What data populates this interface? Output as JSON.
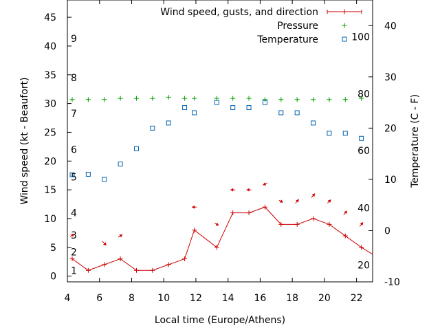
{
  "chart_data": {
    "type": "line",
    "xlabel": "Local time (Europe/Athens)",
    "ylabel_left": "Wind speed (kt - Beaufort)",
    "ylabel_right": "Temperature (C - F)",
    "x_ticks": [
      4,
      6,
      8,
      10,
      12,
      14,
      16,
      18,
      20,
      22
    ],
    "xlim": [
      4,
      23
    ],
    "y_left_ticks": [
      0,
      5,
      10,
      15,
      20,
      25,
      30,
      35,
      40,
      45
    ],
    "y_left_lim": [
      -1,
      48
    ],
    "y_right_ticks": [
      -10,
      0,
      10,
      20,
      30,
      40
    ],
    "y_right_lim": [
      -10,
      45
    ],
    "beaufort_labels": [
      "1",
      "2",
      "3",
      "4",
      "5",
      "6",
      "7",
      "8",
      "9"
    ],
    "beaufort_wind_kt": [
      1.0,
      4.2,
      7.1,
      11.0,
      17.2,
      22.0,
      28.3,
      34.5,
      41.3
    ],
    "fahrenheit_labels": [
      "20",
      "40",
      "60",
      "80",
      "100"
    ],
    "fahrenheit_temp_c": [
      -6.7,
      4.4,
      15.6,
      26.7,
      37.8
    ],
    "legend_position": "top-right",
    "series": [
      {
        "name": "Wind speed, gusts, and direction",
        "color": "#cc0000",
        "x": [
          4.3,
          5.3,
          6.3,
          7.3,
          8.3,
          9.3,
          10.3,
          11.3,
          11.9,
          13.3,
          14.3,
          15.3,
          16.3,
          17.3,
          18.3,
          19.3,
          20.3,
          21.3,
          22.3,
          23.0
        ],
        "values": [
          3,
          1,
          2,
          3,
          1,
          1,
          2,
          3,
          8,
          5,
          11,
          11,
          12,
          9,
          9,
          10,
          9,
          7,
          5,
          3.8
        ]
      },
      {
        "name": "Pressure",
        "color": "#00a000",
        "x": [
          4.3,
          5.3,
          6.3,
          7.3,
          8.3,
          9.3,
          10.3,
          11.3,
          11.9,
          13.3,
          14.3,
          15.3,
          16.3,
          17.3,
          18.3,
          19.3,
          20.3,
          21.3,
          22.3
        ],
        "values": [
          30.7,
          30.7,
          30.7,
          30.9,
          30.9,
          30.9,
          31.1,
          30.9,
          30.9,
          30.9,
          30.9,
          30.9,
          30.7,
          30.7,
          30.7,
          30.7,
          30.7,
          30.7,
          30.9
        ]
      },
      {
        "name": "Temperature",
        "color": "#0060ad",
        "x": [
          4.3,
          5.3,
          6.3,
          7.3,
          8.3,
          9.3,
          10.3,
          11.3,
          11.9,
          13.3,
          14.3,
          15.3,
          16.3,
          17.3,
          18.3,
          19.3,
          20.3,
          21.3,
          22.3
        ],
        "values": [
          10.9,
          11.0,
          10.0,
          13.0,
          16.0,
          20.0,
          21.0,
          24.0,
          23.0,
          25.0,
          24.0,
          24.0,
          25.0,
          23.0,
          23.0,
          21.0,
          19.0,
          19.0,
          18.0
        ]
      }
    ],
    "wind_direction_arrows": [
      {
        "x": 4.3,
        "wind": 7.1,
        "dx": 6,
        "dy": -4
      },
      {
        "x": 6.3,
        "wind": 5.7,
        "dx": 6,
        "dy": 6
      },
      {
        "x": 7.3,
        "wind": 7.0,
        "dx": 6,
        "dy": -4
      },
      {
        "x": 11.9,
        "wind": 12.0,
        "dx": -7,
        "dy": 0
      },
      {
        "x": 13.3,
        "wind": 9.0,
        "dx": 6,
        "dy": 3
      },
      {
        "x": 14.3,
        "wind": 15.0,
        "dx": -7,
        "dy": 0
      },
      {
        "x": 15.3,
        "wind": 15.0,
        "dx": -7,
        "dy": 0
      },
      {
        "x": 16.3,
        "wind": 16.0,
        "dx": -6,
        "dy": 3
      },
      {
        "x": 17.3,
        "wind": 13.0,
        "dx": 6,
        "dy": 3
      },
      {
        "x": 18.3,
        "wind": 13.0,
        "dx": 5,
        "dy": -6
      },
      {
        "x": 19.3,
        "wind": 14.0,
        "dx": 5,
        "dy": -6
      },
      {
        "x": 20.3,
        "wind": 13.0,
        "dx": 5,
        "dy": -5
      },
      {
        "x": 21.3,
        "wind": 11.0,
        "dx": 5,
        "dy": -6
      },
      {
        "x": 22.3,
        "wind": 9.0,
        "dx": 5,
        "dy": -6
      }
    ]
  }
}
